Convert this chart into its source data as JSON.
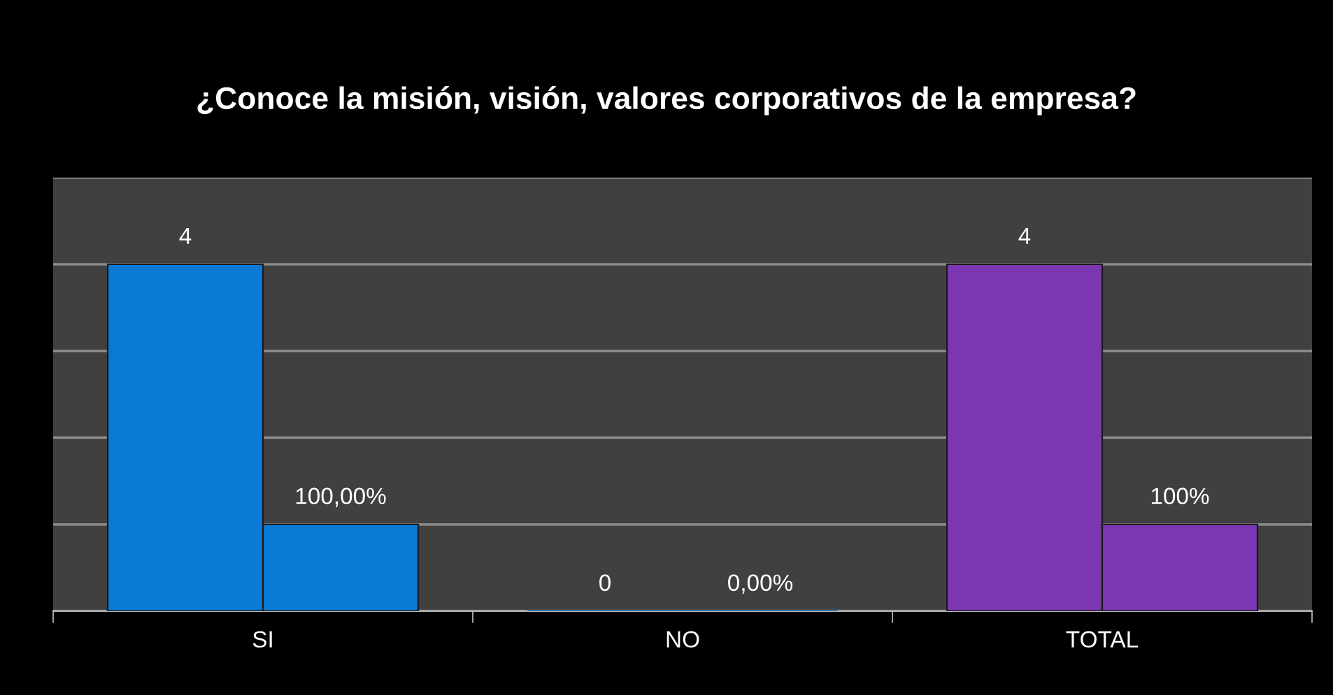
{
  "chart_data": {
    "type": "bar",
    "title": "¿Conoce la misión, visión, valores corporativos de la empresa?",
    "categories": [
      "SI",
      "NO",
      "TOTAL"
    ],
    "series": [
      {
        "colors": [
          "#0a7ad6",
          "#0a7ad6",
          "#7b36b2"
        ],
        "values": [
          4,
          0,
          4
        ],
        "value_labels": [
          "4",
          "0",
          "4"
        ]
      },
      {
        "colors": [
          "#0a7ad6",
          "#0a7ad6",
          "#7b36b2"
        ],
        "values": [
          1,
          0,
          1
        ],
        "value_labels": [
          "100,00%",
          "0,00%",
          "100%"
        ]
      }
    ],
    "ylim": [
      0,
      5
    ],
    "yticks": [
      {
        "value": 0,
        "label": null
      },
      {
        "value": 1,
        "label": null
      },
      {
        "value": 2,
        "label": null
      },
      {
        "value": 3,
        "label": null
      },
      {
        "value": 4,
        "label": null
      },
      {
        "value": 5,
        "label": null
      }
    ],
    "tick_labels": "x",
    "grid": "y",
    "legend": false
  }
}
